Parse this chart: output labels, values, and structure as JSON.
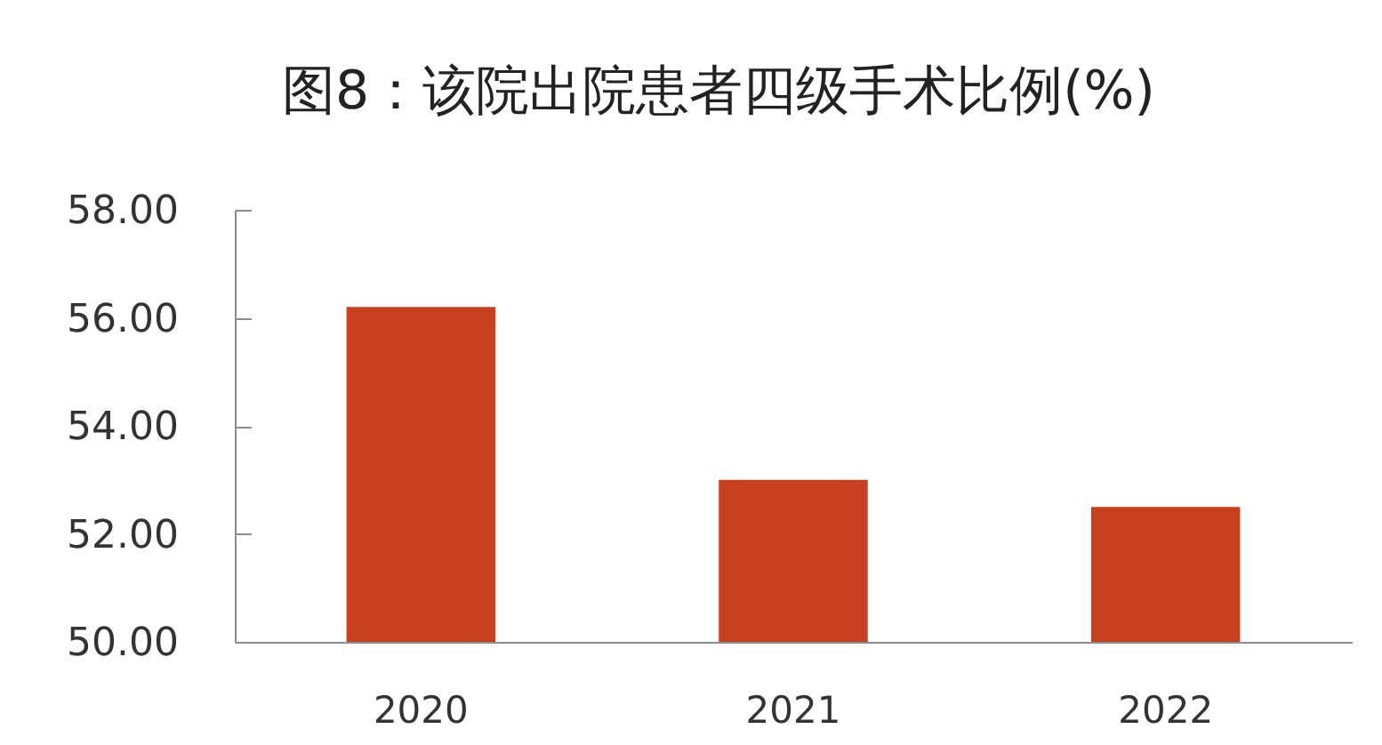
{
  "chart_data": {
    "type": "bar",
    "title": "图8：该院出院患者四级手术比例(%)",
    "categories": [
      "2020",
      "2021",
      "2022"
    ],
    "values": [
      56.2,
      53.0,
      52.5
    ],
    "color": "#c8401e",
    "ylim": [
      50,
      58
    ],
    "yticks": [
      {
        "value": 50,
        "label": "50.00"
      },
      {
        "value": 52,
        "label": "52.00"
      },
      {
        "value": 54,
        "label": "54.00"
      },
      {
        "value": 56,
        "label": "56.00"
      },
      {
        "value": 58,
        "label": "58.00"
      }
    ]
  }
}
